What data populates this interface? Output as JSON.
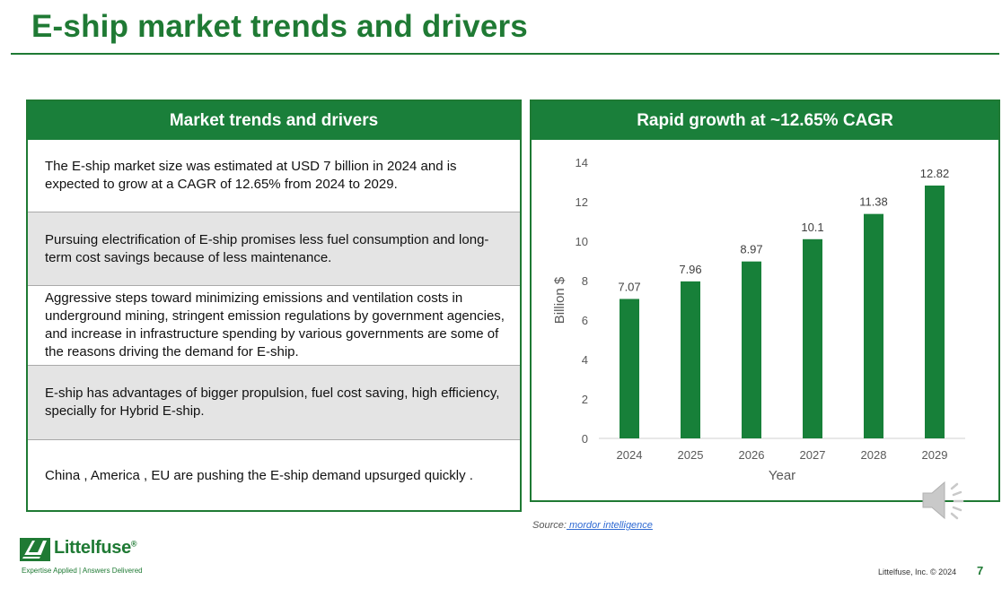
{
  "slide": {
    "title": "E-ship market trends and drivers",
    "page_number": "7",
    "footer": "Littelfuse, Inc. © 2024"
  },
  "left_panel": {
    "header": "Market trends and drivers",
    "rows": [
      {
        "text": "The E-ship  market size was estimated at USD 7 billion in 2024 and is expected to grow at a CAGR of 12.65% from 2024 to 2029.",
        "shaded": false
      },
      {
        "text": "Pursuing electrification of E-ship promises less fuel consumption and long-term cost savings because of less maintenance.",
        "shaded": true
      },
      {
        "text": "Aggressive steps toward minimizing emissions and ventilation costs in underground mining, stringent emission regulations by government agencies, and increase in infrastructure spending by various governments are some of the reasons driving the demand for E-ship.",
        "shaded": false
      },
      {
        "text": "E-ship has advantages of bigger propulsion, fuel cost saving, high efficiency, specially for Hybrid E-ship.",
        "shaded": true
      },
      {
        "text": "China , America , EU are pushing the E-ship demand upsurged quickly .",
        "shaded": false
      }
    ]
  },
  "right_panel": {
    "header": "Rapid growth at ~12.65% CAGR"
  },
  "chart_data": {
    "type": "bar",
    "categories": [
      "2024",
      "2025",
      "2026",
      "2027",
      "2028",
      "2029"
    ],
    "values": [
      7.07,
      7.96,
      8.97,
      10.1,
      11.38,
      12.82
    ],
    "data_labels": [
      "7.07",
      "7.96",
      "8.97",
      "10.1",
      "11.38",
      "12.82"
    ],
    "xlabel": "Year",
    "ylabel": "Billion $",
    "ylim": [
      0,
      14
    ],
    "yticks": [
      0,
      2,
      4,
      6,
      8,
      10,
      12,
      14
    ],
    "grid": false,
    "legend": "none",
    "bar_color": "#178039"
  },
  "source": {
    "label": "Source:",
    "link_text": " mordor intelligence"
  },
  "logo": {
    "name": "Littelfuse",
    "trademark": "®",
    "tagline": "Expertise Applied | Answers Delivered"
  },
  "icons": {
    "speaker": "speaker-icon",
    "logo_mark": "littelfuse-logo-icon"
  },
  "colors": {
    "brand_green": "#1f7a34",
    "header_green": "#1a7f3a",
    "shaded_row": "#e4e4e4"
  }
}
